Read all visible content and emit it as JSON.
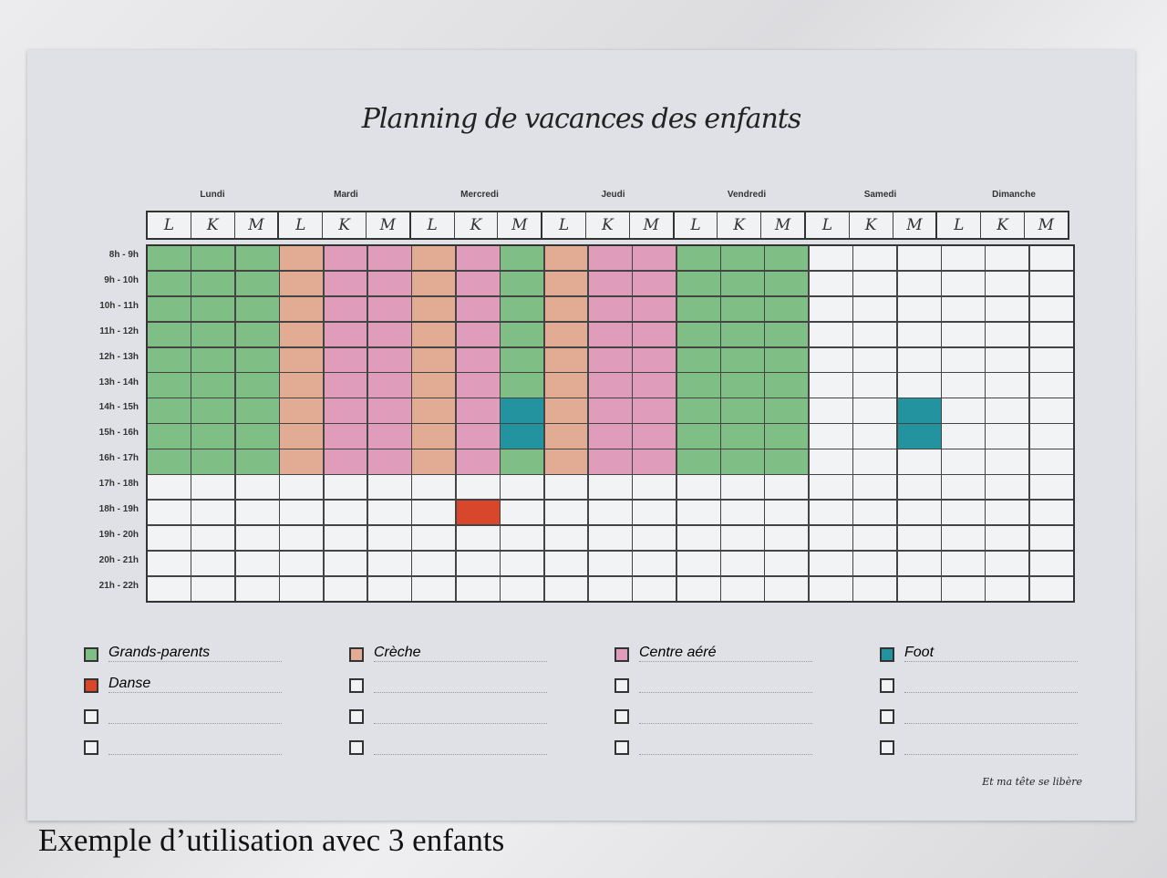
{
  "title": "Planning de vacances des enfants",
  "days": [
    "Lundi",
    "Mardi",
    "Mercredi",
    "Jeudi",
    "Vendredi",
    "Samedi",
    "Dimanche"
  ],
  "kids": [
    "L",
    "K",
    "M"
  ],
  "hours": [
    "8h - 9h",
    "9h - 10h",
    "10h - 11h",
    "11h - 12h",
    "12h - 13h",
    "13h - 14h",
    "14h - 15h",
    "15h - 16h",
    "16h - 17h",
    "17h - 18h",
    "18h - 19h",
    "19h - 20h",
    "20h - 21h",
    "21h - 22h"
  ],
  "activities": {
    "G": {
      "label": "Grands-parents",
      "color": "#7fbf85"
    },
    "C": {
      "label": "Crèche",
      "color": "#e2ab93"
    },
    "A": {
      "label": "Centre aéré",
      "color": "#df9dbb"
    },
    "F": {
      "label": "Foot",
      "color": "#23939f"
    },
    "D": {
      "label": "Danse",
      "color": "#d8462c"
    }
  },
  "legend": [
    [
      "G",
      "D",
      "",
      ""
    ],
    [
      "C",
      "",
      "",
      ""
    ],
    [
      "A",
      "",
      "",
      ""
    ],
    [
      "F",
      "",
      "",
      ""
    ]
  ],
  "schedule": [
    "GGGGGGGGG-----",
    "GGGGGGGGG-----",
    "GGGGGGGGG-----",
    "CCCCCCCCC-----",
    "AAAAAAAAA-----",
    "AAAAAAAAA-----",
    "CCCCCCCCC-----",
    "AAAAAAAAA-D---",
    "GGGGGGFFG-----",
    "CCCCCCCCC-----",
    "AAAAAAAAA-----",
    "AAAAAAAAA-----",
    "GGGGGGGGG-----",
    "GGGGGGGGG-----",
    "GGGGGGGGG-----",
    "--------------",
    "--------------",
    "------FF------",
    "--------------",
    "--------------",
    "--------------"
  ],
  "signature": "Et ma tête se libère",
  "caption": "Exemple d’utilisation avec 3 enfants"
}
